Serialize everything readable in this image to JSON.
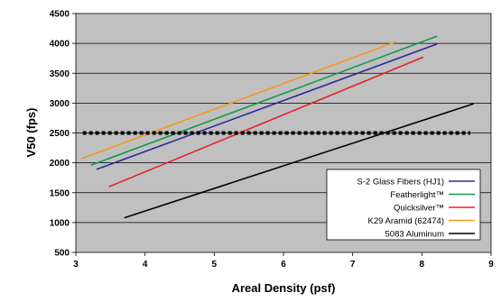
{
  "chart_data": {
    "type": "line",
    "xlabel": "Areal Density (psf)",
    "ylabel": "V50 (fps)",
    "xlim": [
      3,
      9
    ],
    "ylim": [
      500,
      4500
    ],
    "x_ticks": [
      "3",
      "4",
      "5",
      "6",
      "7",
      "8",
      "9"
    ],
    "y_ticks": [
      "500",
      "1000",
      "1500",
      "2000",
      "2500",
      "3000",
      "3500",
      "4000",
      "4500"
    ],
    "grid": "horizontal",
    "plot_background": "#c0c0c0",
    "legend_position": "bottom-right",
    "series": [
      {
        "name": "S-2 Glass Fibers (HJ1)",
        "color": "#2b2b9c",
        "x": [
          3.3,
          8.22
        ],
        "y": [
          1890,
          3990
        ]
      },
      {
        "name": "Featherlight™",
        "color": "#0f9a4e",
        "x": [
          3.22,
          8.22
        ],
        "y": [
          1960,
          4120
        ]
      },
      {
        "name": "Quicksilver™",
        "color": "#e8202a",
        "x": [
          3.48,
          8.02
        ],
        "y": [
          1600,
          3770
        ]
      },
      {
        "name": "K29 Aramid (62474)",
        "color": "#f39a1e",
        "x": [
          3.08,
          7.63
        ],
        "y": [
          2070,
          4030
        ]
      },
      {
        "name": "5083 Aluminum",
        "color": "#000000",
        "x": [
          3.7,
          8.75
        ],
        "y": [
          1080,
          2990
        ]
      }
    ],
    "reference_line": {
      "y": 2500,
      "x": [
        3.1,
        8.7
      ],
      "color": "#000000",
      "style": "dashed"
    }
  }
}
